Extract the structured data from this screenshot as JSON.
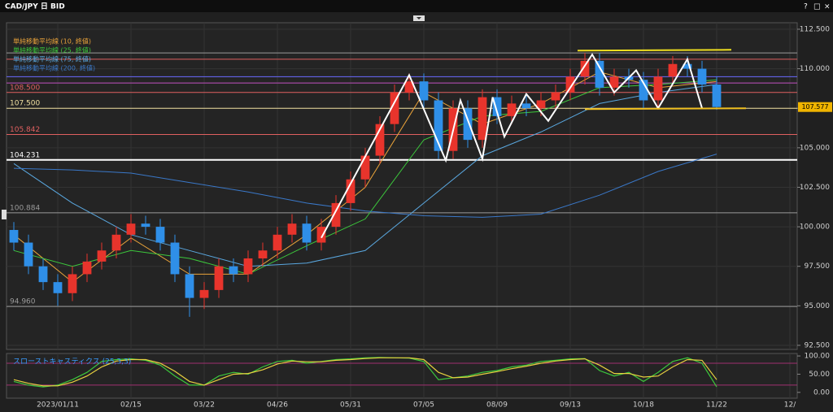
{
  "window_controls": [
    "?",
    "□",
    "×"
  ],
  "chart_data": {
    "type": "candlestick",
    "title": "CAD/JPY 日 BID",
    "categories": [
      null,
      null,
      null,
      "2023/01/11",
      null,
      null,
      null,
      null,
      "02/15",
      null,
      null,
      null,
      null,
      "03/22",
      null,
      null,
      null,
      null,
      "04/26",
      null,
      null,
      null,
      null,
      "05/31",
      null,
      null,
      null,
      null,
      "07/05",
      null,
      null,
      null,
      null,
      "08/09",
      null,
      null,
      null,
      null,
      "09/13",
      null,
      null,
      null,
      null,
      "10/18",
      null,
      null,
      null,
      null,
      "11/22",
      null,
      null,
      null,
      null,
      "12/"
    ],
    "open": [
      99.8,
      99.0,
      97.5,
      96.5,
      95.8,
      97.0,
      97.8,
      98.5,
      99.5,
      100.2,
      100.0,
      99.0,
      97.0,
      95.5,
      96.0,
      97.5,
      97.0,
      98.0,
      98.5,
      99.5,
      100.2,
      99.0,
      100.0,
      101.5,
      103.0,
      104.5,
      106.5,
      108.5,
      109.2,
      108.0,
      104.8,
      107.5,
      105.5,
      108.2,
      107.0,
      107.8,
      107.5,
      108.0,
      108.5,
      109.5,
      110.5,
      108.8,
      109.5,
      109.3,
      108.0,
      109.5,
      110.3,
      110.0,
      109.0,
      null,
      null,
      null,
      null,
      null
    ],
    "high": [
      100.3,
      99.5,
      98.0,
      97.0,
      97.5,
      98.3,
      99.0,
      100.0,
      100.8,
      100.7,
      100.5,
      99.5,
      97.5,
      96.5,
      98.0,
      98.0,
      98.5,
      99.0,
      100.0,
      100.8,
      100.7,
      100.5,
      102.0,
      103.5,
      105.0,
      107.0,
      109.0,
      109.7,
      109.7,
      108.5,
      108.0,
      108.0,
      108.7,
      108.7,
      108.3,
      108.3,
      108.5,
      109.0,
      110.0,
      111.0,
      111.0,
      110.0,
      110.0,
      109.8,
      110.0,
      110.8,
      110.8,
      110.5,
      109.5,
      null,
      null,
      null,
      null,
      null
    ],
    "low": [
      98.5,
      97.0,
      96.0,
      95.0,
      95.3,
      96.5,
      97.3,
      98.0,
      99.0,
      99.5,
      98.5,
      96.5,
      94.3,
      94.8,
      95.5,
      96.5,
      96.5,
      97.5,
      98.0,
      99.0,
      98.5,
      98.5,
      99.5,
      101.0,
      102.5,
      104.0,
      106.0,
      108.0,
      107.5,
      104.3,
      104.3,
      105.0,
      105.0,
      106.5,
      106.5,
      107.0,
      107.0,
      107.5,
      108.0,
      109.0,
      108.3,
      108.3,
      108.8,
      107.5,
      107.5,
      109.0,
      109.5,
      108.5,
      107.4,
      null,
      null,
      null,
      null,
      null
    ],
    "close": [
      99.0,
      97.5,
      96.5,
      95.8,
      97.0,
      97.8,
      98.5,
      99.5,
      100.2,
      100.0,
      99.0,
      97.0,
      95.5,
      96.0,
      97.5,
      97.0,
      98.0,
      98.5,
      99.5,
      100.2,
      99.0,
      100.0,
      101.5,
      103.0,
      104.5,
      106.5,
      108.5,
      109.2,
      108.0,
      104.8,
      107.5,
      105.5,
      108.2,
      107.0,
      107.8,
      107.5,
      108.0,
      108.5,
      109.5,
      110.5,
      108.8,
      109.5,
      109.3,
      108.0,
      109.5,
      110.3,
      110.0,
      109.0,
      107.577,
      null,
      null,
      null,
      null,
      null
    ],
    "up_color": "#e8342c",
    "down_color": "#2f8fe8",
    "ylim": [
      92.24,
      112.91
    ],
    "yticks": [
      {
        "value": 92.5,
        "label": "92.500"
      },
      {
        "value": 95,
        "label": "95.000"
      },
      {
        "value": 97.5,
        "label": "97.500"
      },
      {
        "value": 100,
        "label": "100.000"
      },
      {
        "value": 102.5,
        "label": "102.500"
      },
      {
        "value": 105,
        "label": "105.000"
      },
      {
        "value": 107.5,
        "label": "107.500"
      },
      {
        "value": 110,
        "label": "110.000"
      },
      {
        "value": 112.5,
        "label": "112.500"
      }
    ],
    "grid": true,
    "moving_averages": [
      {
        "name": "単純移動平均線 (10, 終値)",
        "color": "#e8a23a",
        "x": [
          0,
          4,
          8,
          12,
          16,
          20,
          24,
          28,
          32,
          36,
          40,
          44,
          48
        ],
        "values": [
          99.5,
          96.5,
          99.3,
          97.0,
          97.0,
          99.5,
          102.5,
          108.5,
          106.5,
          107.8,
          109.8,
          108.8,
          109.2
        ]
      },
      {
        "name": "単純移動平均線 (25, 終値)",
        "color": "#3cc83c",
        "x": [
          0,
          4,
          8,
          12,
          16,
          20,
          24,
          28,
          32,
          36,
          40,
          44,
          48
        ],
        "values": [
          98.5,
          97.5,
          98.5,
          98.0,
          97.0,
          98.8,
          100.5,
          105.5,
          107.0,
          107.3,
          108.8,
          109.0,
          109.3
        ]
      },
      {
        "name": "単純移動平均線 (75, 終値)",
        "color": "#5aa8e0",
        "x": [
          0,
          4,
          8,
          12,
          16,
          20,
          24,
          28,
          32,
          36,
          40,
          44,
          48
        ],
        "values": [
          104.0,
          101.5,
          99.5,
          98.5,
          97.5,
          97.7,
          98.5,
          101.5,
          104.5,
          106.0,
          107.8,
          108.5,
          109.0
        ]
      },
      {
        "name": "単純移動平均線 (200, 終値)",
        "color": "#3a78c8",
        "x": [
          0,
          4,
          8,
          12,
          16,
          20,
          24,
          28,
          32,
          36,
          40,
          44,
          48
        ],
        "values": [
          103.7,
          103.6,
          103.4,
          102.8,
          102.2,
          101.5,
          101.0,
          100.7,
          100.6,
          100.8,
          102.0,
          103.5,
          104.6
        ]
      }
    ],
    "levels": [
      {
        "value": 111.0,
        "color": "#9a9a9a"
      },
      {
        "value": 110.6,
        "color": "#e06060"
      },
      {
        "value": 109.5,
        "color": "#6a6aff"
      },
      {
        "value": 109.1,
        "color": "#c050c0"
      },
      {
        "value": 108.5,
        "label": "108.500",
        "color": "#e06060"
      },
      {
        "value": 107.5,
        "label": "107.500",
        "color": "#f0e0a0"
      },
      {
        "value": 105.842,
        "label": "105.842",
        "color": "#e06060"
      },
      {
        "value": 104.231,
        "label": "104.231",
        "color": "#ffffff"
      },
      {
        "value": 100.884,
        "label": "100.884",
        "color": "#9a9a9a"
      },
      {
        "value": 94.96,
        "label": "94.960",
        "color": "#9a9a9a"
      }
    ],
    "drawings": [
      {
        "color": "#ffffff",
        "x": [
          21,
          27,
          29.5,
          30.5,
          32,
          32.7,
          33.5,
          35,
          36.5,
          39.5,
          41,
          42.5,
          44,
          46,
          47
        ],
        "values": [
          99.3,
          109.6,
          104.2,
          108.0,
          104.3,
          108.2,
          105.7,
          108.4,
          106.7,
          110.9,
          108.5,
          109.9,
          107.5,
          110.6,
          107.5
        ]
      },
      {
        "color": "#f0e020",
        "x": [
          38.5,
          49
        ],
        "values": [
          111.15,
          111.2
        ]
      },
      {
        "color": "#f0c020",
        "x": [
          39,
          50
        ],
        "values": [
          107.45,
          107.5
        ]
      }
    ],
    "oscillator": {
      "title": "スローストキャスティクス (25,3,3)",
      "ylim": [
        -15.9,
        106.8
      ],
      "yticks": [
        {
          "value": 100,
          "label": "100.00"
        },
        {
          "value": 50,
          "label": "50.00"
        },
        {
          "value": 0,
          "label": "0.00"
        }
      ],
      "levels": [
        80,
        20
      ],
      "level_color": "#a03070",
      "series": [
        {
          "color": "#3cc83c",
          "values": [
            30,
            20,
            15,
            20,
            35,
            55,
            85,
            90,
            92,
            88,
            75,
            45,
            20,
            20,
            45,
            55,
            50,
            70,
            85,
            88,
            80,
            85,
            90,
            92,
            95,
            96,
            95,
            94,
            85,
            35,
            40,
            45,
            55,
            60,
            70,
            75,
            85,
            88,
            92,
            93,
            60,
            45,
            55,
            30,
            55,
            85,
            95,
            80,
            15,
            null,
            null,
            null,
            null,
            null
          ]
        },
        {
          "color": "#e8d040",
          "values": [
            35,
            25,
            18,
            18,
            28,
            45,
            70,
            86,
            90,
            90,
            80,
            58,
            30,
            20,
            35,
            50,
            52,
            62,
            78,
            86,
            84,
            84,
            88,
            90,
            93,
            95,
            95,
            95,
            90,
            55,
            40,
            42,
            50,
            57,
            65,
            72,
            80,
            86,
            90,
            92,
            75,
            52,
            52,
            42,
            45,
            70,
            90,
            88,
            35,
            null,
            null,
            null,
            null,
            null
          ]
        }
      ]
    }
  }
}
